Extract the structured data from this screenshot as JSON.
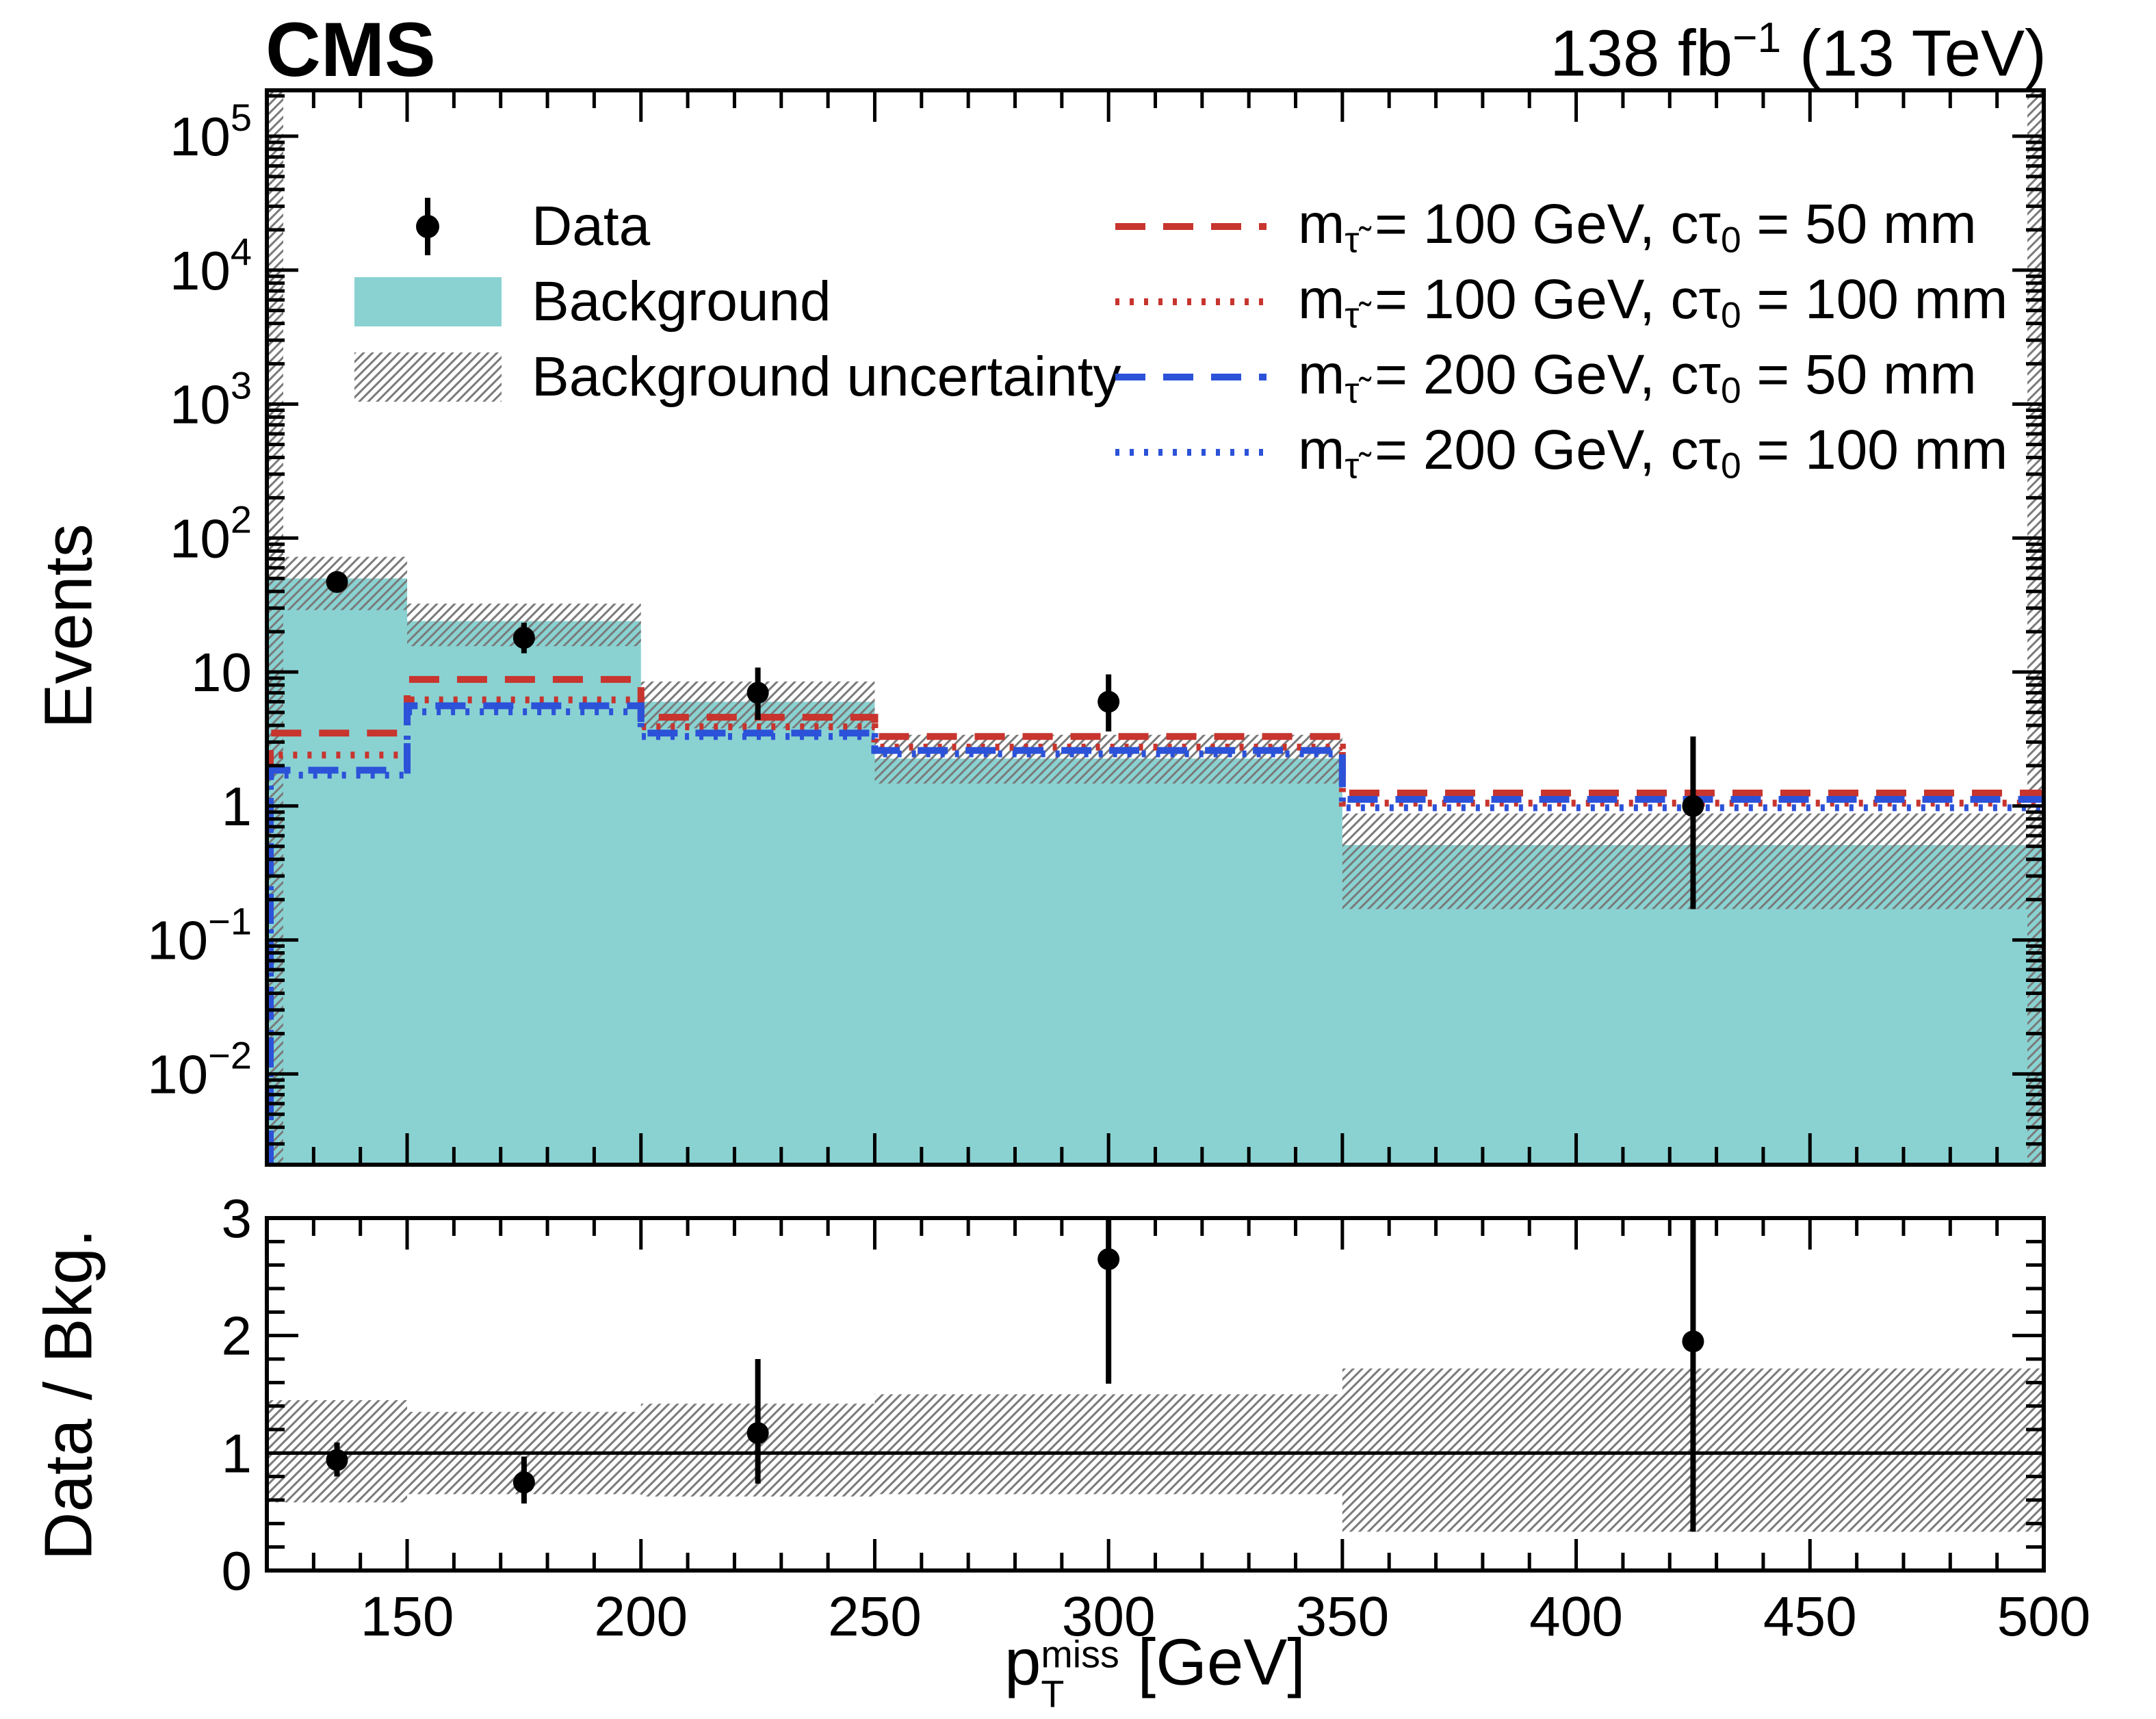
{
  "header": {
    "experiment": "CMS",
    "lumi_segments": [
      {
        "t": "138 fb"
      },
      {
        "t": "−1",
        "sup": true
      },
      {
        "t": " (13 TeV)"
      }
    ]
  },
  "axes": {
    "main_ylabel": "Events",
    "ratio_ylabel": "Data / Bkg.",
    "xlabel_segments": [
      {
        "t": "p"
      },
      {
        "stack": {
          "over": "miss",
          "under": "T"
        }
      },
      {
        "t": " [GeV]"
      }
    ],
    "x_ticks": [
      150,
      200,
      250,
      300,
      350,
      400,
      450,
      500
    ],
    "x_minor_step": 10,
    "main_y_tick_exponents": [
      5,
      4,
      3,
      2,
      1,
      0,
      -1,
      -2
    ],
    "ratio_y_ticks": [
      0,
      1,
      2,
      3
    ],
    "ratio_minor_step": 0.2
  },
  "legend": {
    "data_label": "Data",
    "background_label": "Background",
    "uncertainty_label": "Background uncertainty"
  },
  "colors": {
    "background_fill": "#8ad2d2",
    "hatch": "#7a7a7a",
    "data_marker": "#000000",
    "signal_red": "#c8342e",
    "signal_blue": "#2b52d8"
  },
  "chart_data": {
    "type": "bar",
    "title": "CMS 138 fb⁻¹ (13 TeV)",
    "xlabel": "pT miss [GeV]",
    "ylabel": "Events",
    "x_range": [
      120,
      500
    ],
    "y_scale": "log",
    "y_range": [
      0.0021,
      220000
    ],
    "bin_edges": [
      120,
      150,
      200,
      250,
      350,
      500
    ],
    "background": {
      "label": "Background",
      "values": [
        50,
        24,
        6,
        2.26,
        0.51
      ]
    },
    "background_uncertainty": {
      "low": [
        29,
        15.6,
        3.8,
        1.47,
        0.17
      ],
      "high": [
        72.5,
        32.4,
        8.5,
        3.4,
        0.88
      ]
    },
    "data_points": {
      "label": "Data",
      "x": [
        135,
        175,
        225,
        300,
        425
      ],
      "y": [
        47,
        18,
        7,
        6,
        1
      ],
      "err_low": [
        6.8,
        4.2,
        2.6,
        2.4,
        0.83
      ],
      "err_high": [
        7.4,
        5.3,
        3.8,
        3.6,
        2.3
      ]
    },
    "signals": [
      {
        "name": "m(stau) = 100 GeV, ctau0 = 50 mm",
        "label_segments": [
          {
            "t": "m"
          },
          {
            "t": "τ̃",
            "sub": true
          },
          {
            "t": " = 100 GeV, cτ"
          },
          {
            "t": "0",
            "sub": true
          },
          {
            "t": " = 50 mm"
          }
        ],
        "color": "#c8342e",
        "dash": "dashed",
        "values": [
          3.5,
          8.8,
          4.6,
          3.3,
          1.25
        ]
      },
      {
        "name": "m(stau) = 100 GeV, ctau0 = 100 mm",
        "label_segments": [
          {
            "t": "m"
          },
          {
            "t": "τ̃",
            "sub": true
          },
          {
            "t": " = 100 GeV, cτ"
          },
          {
            "t": "0",
            "sub": true
          },
          {
            "t": " = 100 mm"
          }
        ],
        "color": "#c8342e",
        "dash": "dotted",
        "values": [
          2.4,
          6.2,
          3.9,
          2.75,
          1.05
        ]
      },
      {
        "name": "m(stau) = 200 GeV, ctau0 = 50 mm",
        "label_segments": [
          {
            "t": "m"
          },
          {
            "t": "τ̃",
            "sub": true
          },
          {
            "t": " = 200 GeV, cτ"
          },
          {
            "t": "0",
            "sub": true
          },
          {
            "t": " = 50 mm"
          }
        ],
        "color": "#2b52d8",
        "dash": "dashed",
        "values": [
          1.85,
          5.6,
          3.5,
          2.6,
          1.12
        ]
      },
      {
        "name": "m(stau) = 200 GeV, ctau0 = 100 mm",
        "label_segments": [
          {
            "t": "m"
          },
          {
            "t": "τ̃",
            "sub": true
          },
          {
            "t": " = 200 GeV, cτ"
          },
          {
            "t": "0",
            "sub": true
          },
          {
            "t": " = 100 mm"
          }
        ],
        "color": "#2b52d8",
        "dash": "dotted",
        "values": [
          1.7,
          5.05,
          3.3,
          2.45,
          0.97
        ]
      }
    ],
    "ratio_panel": {
      "ylabel": "Data / Bkg.",
      "y_range": [
        0,
        3
      ],
      "reference_line": 1,
      "unc_low": [
        0.58,
        0.65,
        0.63,
        0.65,
        0.33
      ],
      "unc_high": [
        1.45,
        1.35,
        1.42,
        1.5,
        1.72
      ],
      "points": {
        "x": [
          135,
          175,
          225,
          300,
          425
        ],
        "y": [
          0.94,
          0.75,
          1.17,
          2.65,
          1.95
        ],
        "err_low": [
          0.14,
          0.18,
          0.43,
          1.06,
          1.62
        ],
        "err_high": [
          0.15,
          0.22,
          0.63,
          1.59,
          4.5
        ]
      }
    }
  }
}
